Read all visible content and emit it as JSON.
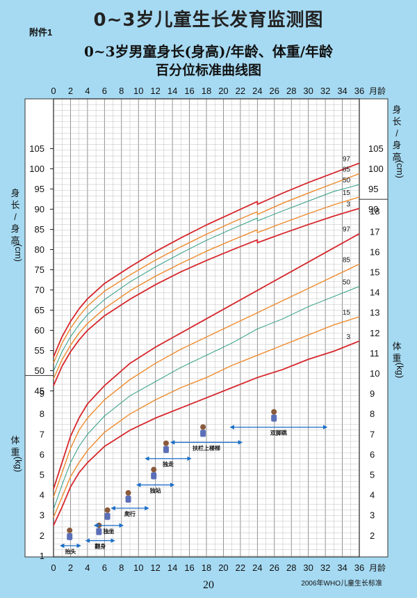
{
  "header": {
    "main_title": "0~3岁儿童生长发育监测图",
    "attachment_label": "附件1",
    "subtitle_line1": "0~3岁男童身长(身高)/年龄、体重/年龄",
    "subtitle_line2": "百分位标准曲线图"
  },
  "footer": {
    "page_number": "20",
    "source": "2006年WHO儿童生长标准"
  },
  "colors": {
    "background": "#a6daf2",
    "grid_bg": "#ffffff",
    "p3_p97": "#d7262b",
    "p15_p85": "#ef8a2c",
    "p50": "#2e9c82",
    "milestone_arrow": "#1a6ec8"
  },
  "chart_data": {
    "type": "line",
    "x_axis": {
      "label": "月龄",
      "ticks": [
        "0",
        "2",
        "4",
        "6",
        "8",
        "10",
        "12",
        "14",
        "16",
        "18",
        "20",
        "22",
        "24",
        "26",
        "28",
        "30",
        "32",
        "34",
        "36"
      ],
      "range": [
        0,
        36
      ]
    },
    "height_axis": {
      "label": "身长/身高(cm)",
      "label_chars": [
        "身",
        "长",
        "/",
        "身",
        "高",
        "(cm)"
      ],
      "left_ticks": [
        "45",
        "50",
        "55",
        "60",
        "65",
        "70",
        "75",
        "80",
        "85",
        "90",
        "95",
        "100",
        "105"
      ],
      "right_ticks": [
        "90",
        "95",
        "100",
        "105"
      ],
      "range": [
        43,
        108
      ]
    },
    "weight_axis": {
      "label": "体重(kg)",
      "label_chars": [
        "体",
        "重",
        "(kg)"
      ],
      "left_ticks": [
        "1",
        "2",
        "3",
        "4",
        "5",
        "6",
        "7",
        "8",
        "9"
      ],
      "right_ticks": [
        "2",
        "3",
        "4",
        "5",
        "6",
        "7",
        "8",
        "9",
        "10",
        "11",
        "12",
        "13",
        "14",
        "15",
        "16",
        "17",
        "18"
      ],
      "range": [
        1,
        18.5
      ]
    },
    "height_series": [
      {
        "name": "97",
        "months": [
          0,
          1,
          2,
          3,
          4,
          6,
          9,
          12,
          15,
          18,
          21,
          24,
          24,
          27,
          30,
          33,
          36
        ],
        "values": [
          53.4,
          58.4,
          62.2,
          65.3,
          67.8,
          71.6,
          75.7,
          79.5,
          82.9,
          86.1,
          89.0,
          91.9,
          91.2,
          94.0,
          96.6,
          99.0,
          101.4
        ]
      },
      {
        "name": "85",
        "months": [
          0,
          1,
          2,
          3,
          4,
          6,
          9,
          12,
          15,
          18,
          21,
          24,
          24,
          27,
          30,
          33,
          36
        ],
        "values": [
          51.9,
          56.8,
          60.5,
          63.5,
          66.0,
          69.7,
          73.7,
          77.4,
          80.7,
          83.8,
          86.7,
          89.4,
          88.7,
          91.5,
          94.0,
          96.4,
          98.8
        ]
      },
      {
        "name": "50",
        "months": [
          0,
          1,
          2,
          3,
          4,
          6,
          9,
          12,
          15,
          18,
          21,
          24,
          24,
          27,
          30,
          33,
          36
        ],
        "values": [
          49.9,
          54.7,
          58.4,
          61.4,
          63.9,
          67.6,
          72.0,
          75.7,
          79.1,
          82.3,
          85.1,
          87.8,
          87.1,
          89.6,
          92.0,
          94.4,
          96.1
        ]
      },
      {
        "name": "15",
        "months": [
          0,
          1,
          2,
          3,
          4,
          6,
          9,
          12,
          15,
          18,
          21,
          24,
          24,
          27,
          30,
          33,
          36
        ],
        "values": [
          48.0,
          52.7,
          56.3,
          59.3,
          61.7,
          65.4,
          69.8,
          73.4,
          76.6,
          79.6,
          82.3,
          84.9,
          84.2,
          86.6,
          88.9,
          91.1,
          93.0
        ]
      },
      {
        "name": "3",
        "months": [
          0,
          1,
          2,
          3,
          4,
          6,
          9,
          12,
          15,
          18,
          21,
          24,
          24,
          27,
          30,
          33,
          36
        ],
        "values": [
          46.3,
          51.1,
          54.7,
          57.6,
          60.0,
          63.6,
          67.7,
          71.3,
          74.5,
          77.3,
          79.9,
          82.4,
          81.7,
          84.0,
          86.2,
          88.3,
          90.2
        ]
      }
    ],
    "weight_series": [
      {
        "name": "97",
        "months": [
          0,
          1,
          2,
          3,
          4,
          6,
          9,
          12,
          15,
          18,
          21,
          24,
          27,
          30,
          33,
          36
        ],
        "values": [
          4.3,
          5.6,
          6.9,
          7.8,
          8.5,
          9.4,
          10.5,
          11.3,
          12.0,
          12.7,
          13.4,
          14.1,
          14.8,
          15.5,
          16.2,
          16.9
        ]
      },
      {
        "name": "85",
        "months": [
          0,
          1,
          2,
          3,
          4,
          6,
          9,
          12,
          15,
          18,
          21,
          24,
          27,
          30,
          33,
          36
        ],
        "values": [
          3.9,
          5.1,
          6.3,
          7.2,
          7.8,
          8.7,
          9.7,
          10.5,
          11.2,
          11.8,
          12.4,
          13.0,
          13.6,
          14.2,
          14.8,
          15.4
        ]
      },
      {
        "name": "50",
        "months": [
          0,
          1,
          2,
          3,
          4,
          6,
          9,
          12,
          15,
          18,
          21,
          24,
          27,
          30,
          33,
          36
        ],
        "values": [
          3.3,
          4.5,
          5.6,
          6.4,
          7.0,
          7.9,
          8.9,
          9.6,
          10.3,
          10.9,
          11.5,
          12.2,
          12.7,
          13.3,
          13.8,
          14.3
        ]
      },
      {
        "name": "15",
        "months": [
          0,
          1,
          2,
          3,
          4,
          6,
          9,
          12,
          15,
          18,
          21,
          24,
          27,
          30,
          33,
          36
        ],
        "values": [
          2.9,
          3.9,
          4.9,
          5.6,
          6.2,
          7.1,
          8.0,
          8.7,
          9.3,
          9.8,
          10.4,
          10.9,
          11.4,
          11.9,
          12.4,
          12.8
        ]
      },
      {
        "name": "3",
        "months": [
          0,
          1,
          2,
          3,
          4,
          6,
          9,
          12,
          15,
          18,
          21,
          24,
          27,
          30,
          33,
          36
        ],
        "values": [
          2.5,
          3.4,
          4.4,
          5.1,
          5.6,
          6.4,
          7.2,
          7.8,
          8.3,
          8.8,
          9.3,
          9.8,
          10.2,
          10.7,
          11.1,
          11.6
        ]
      }
    ],
    "milestones": [
      {
        "label": "抬头",
        "start_month": 1,
        "end_month": 3,
        "level": 1.5
      },
      {
        "label": "翻身",
        "start_month": 4,
        "end_month": 7,
        "level": 1.75
      },
      {
        "label": "独坐",
        "start_month": 5,
        "end_month": 8,
        "level": 2.5
      },
      {
        "label": "爬行",
        "start_month": 7,
        "end_month": 11,
        "level": 3.35
      },
      {
        "label": "独站",
        "start_month": 10,
        "end_month": 14,
        "level": 4.5
      },
      {
        "label": "独走",
        "start_month": 11,
        "end_month": 16,
        "level": 5.8
      },
      {
        "label": "扶栏上楼梯",
        "start_month": 14,
        "end_month": 22,
        "level": 6.6
      },
      {
        "label": "双脚跳",
        "start_month": 21,
        "end_month": 32,
        "level": 7.35
      }
    ]
  }
}
